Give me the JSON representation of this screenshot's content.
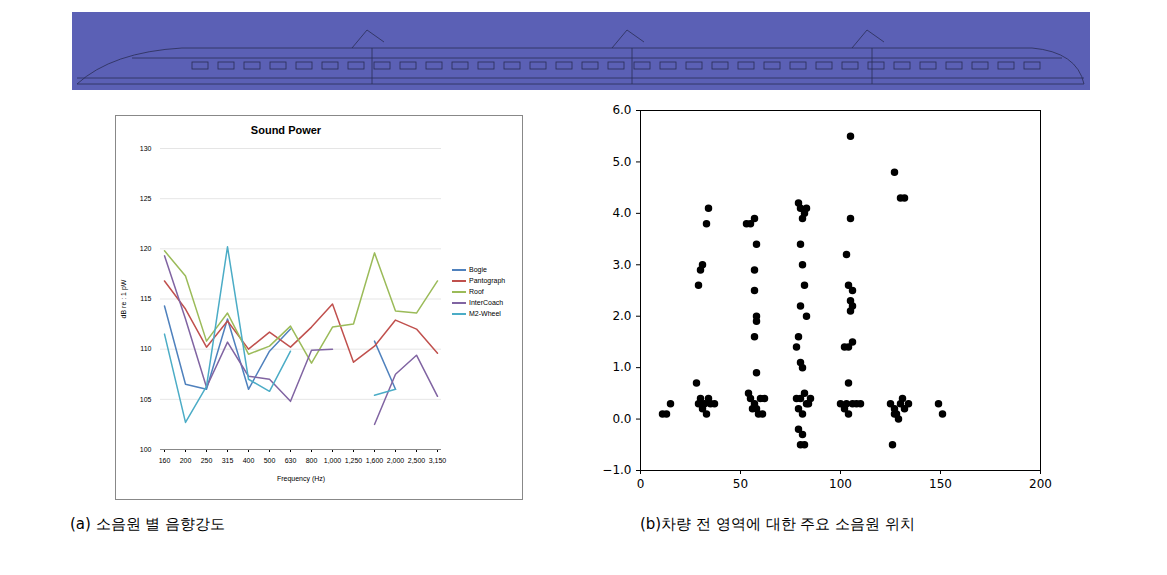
{
  "chart_data": [
    {
      "type": "line",
      "title": "Sound Power",
      "caption": "(a) 소음원 별 음향강도",
      "x_label": "Frequency (Hz)",
      "y_label": "dB re : 1 pW",
      "categories": [
        160,
        200,
        250,
        315,
        400,
        500,
        630,
        800,
        1000,
        1250,
        1600,
        2000,
        2500,
        3150
      ],
      "ylim": [
        100,
        130
      ],
      "yticks": [
        100,
        105,
        110,
        115,
        120,
        125,
        130
      ],
      "grid": true,
      "legend": "right",
      "series": [
        {
          "name": "Bogie",
          "color": "#4f81bd",
          "values": [
            114.3,
            106.5,
            106,
            113,
            106,
            109.8,
            112,
            null,
            null,
            null,
            110.8,
            106,
            null,
            null
          ]
        },
        {
          "name": "Pantograph",
          "color": "#c0504d",
          "values": [
            116.8,
            114,
            110.2,
            112.8,
            110,
            111.7,
            110.2,
            112.2,
            114.5,
            108.7,
            110.3,
            112.9,
            112,
            109.6
          ]
        },
        {
          "name": "Roof",
          "color": "#9bbb59",
          "values": [
            119.8,
            117.3,
            110.8,
            113.6,
            109.5,
            110.3,
            112.3,
            108.6,
            112.2,
            112.5,
            119.6,
            113.8,
            113.6,
            116.8
          ]
        },
        {
          "name": "InterCoach",
          "color": "#8064a2",
          "values": [
            119.3,
            113,
            106.2,
            110.7,
            107.3,
            107,
            104.8,
            109.9,
            110,
            null,
            102.5,
            107.5,
            109.4,
            105.3
          ]
        },
        {
          "name": "M2-Wheel",
          "color": "#4bacc6",
          "values": [
            111.5,
            102.7,
            106.3,
            120.2,
            107,
            105.8,
            109.8,
            null,
            null,
            null,
            105.4,
            106,
            null,
            null
          ]
        }
      ]
    },
    {
      "type": "scatter",
      "caption": "(b)차량 전 영역에 대한 주요 소음원 위치",
      "color": "#000000",
      "xlim": [
        0,
        200
      ],
      "xticks": [
        0,
        50,
        100,
        150,
        200
      ],
      "ylim": [
        -1,
        6
      ],
      "yticks": [
        -1,
        0,
        1,
        2,
        3,
        4,
        5,
        6
      ],
      "grid": false,
      "x": [
        11,
        13,
        15,
        28,
        29,
        30,
        31,
        33,
        34,
        29,
        30,
        31,
        32,
        33,
        34,
        35,
        37,
        53,
        55,
        57,
        58,
        57,
        57,
        58,
        58,
        57,
        58,
        54,
        55,
        57,
        56,
        58,
        59,
        60,
        62,
        61,
        79,
        81,
        82,
        83,
        80,
        80,
        81,
        82,
        80,
        79,
        78,
        80,
        81,
        82,
        78,
        80,
        83,
        85,
        79,
        81,
        79,
        80,
        82,
        81,
        84,
        83,
        105,
        105,
        103,
        104,
        106,
        105,
        106,
        105,
        106,
        104,
        104,
        100,
        102,
        103,
        104,
        106,
        108,
        110,
        102,
        127,
        130,
        132,
        125,
        127,
        128,
        130,
        131,
        129,
        132,
        134,
        126,
        127,
        149,
        151
      ],
      "y": [
        0.1,
        0.1,
        0.3,
        0.7,
        2.6,
        2.9,
        3.0,
        3.8,
        4.1,
        0.3,
        0.4,
        0.2,
        0.3,
        0.1,
        0.4,
        0.3,
        0.3,
        3.8,
        3.8,
        3.9,
        3.4,
        2.9,
        2.5,
        2.0,
        1.9,
        1.6,
        0.9,
        0.5,
        0.4,
        0.3,
        0.2,
        0.2,
        0.1,
        0.4,
        0.4,
        0.1,
        4.2,
        3.9,
        4.0,
        4.1,
        4.1,
        3.4,
        3.0,
        2.6,
        2.2,
        1.6,
        1.4,
        1.1,
        1.0,
        0.5,
        0.4,
        0.4,
        0.3,
        0.4,
        0.2,
        0.1,
        -0.2,
        -0.5,
        -0.5,
        -0.3,
        0.3,
        2.0,
        5.5,
        3.9,
        3.2,
        2.6,
        2.5,
        2.3,
        2.2,
        2.1,
        1.5,
        1.4,
        0.7,
        0.3,
        0.2,
        0.3,
        0.1,
        0.3,
        0.3,
        0.3,
        1.4,
        4.8,
        4.3,
        4.3,
        0.3,
        0.2,
        0.1,
        0.3,
        0.4,
        0.0,
        0.2,
        0.3,
        -0.5,
        0.1,
        0.3,
        0.1
      ]
    }
  ]
}
